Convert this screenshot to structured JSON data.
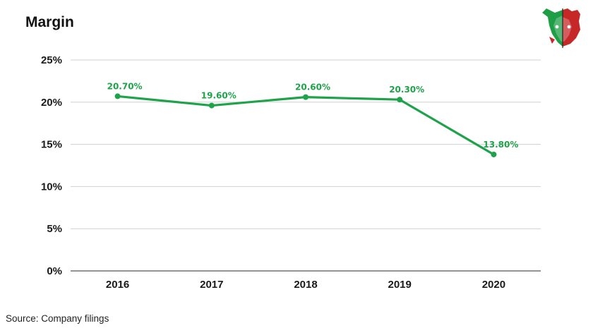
{
  "title": "Margin",
  "source": "Source: Company filings",
  "logo": {
    "icon": "bull-bear-logo-icon",
    "colors": [
      "#1e9e45",
      "#c62828"
    ]
  },
  "colors": {
    "line": "#1ea34a",
    "grid": "#d0d0d0",
    "axis": "#555555"
  },
  "chart_data": {
    "type": "line",
    "title": "Margin",
    "categories": [
      "2016",
      "2017",
      "2018",
      "2019",
      "2020"
    ],
    "series": [
      {
        "values": [
          20.7,
          19.6,
          20.6,
          20.3,
          13.8
        ],
        "labels": [
          "20.70%",
          "19.60%",
          "20.60%",
          "20.30%",
          "13.80%"
        ]
      }
    ],
    "ylim": [
      0,
      25
    ],
    "yticks": [
      0,
      5,
      10,
      15,
      20,
      25
    ],
    "ytick_labels": [
      "0%",
      "5%",
      "10%",
      "15%",
      "20%",
      "25%"
    ],
    "grid": true,
    "legend": "none"
  }
}
